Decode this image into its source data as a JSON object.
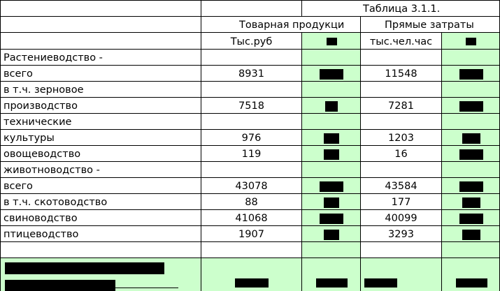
{
  "table": {
    "caption": "Таблица 3.1.1.",
    "header": {
      "group1": "Товарная продукци",
      "group2": "Прямые затраты",
      "unit1": "Тыс.руб",
      "unit2": "тыс.чел.час"
    },
    "rows": [
      {
        "label": "Растениеводство -",
        "value1": "",
        "value2": ""
      },
      {
        "label": "всего",
        "value1": "8931",
        "value2": "11548"
      },
      {
        "label": "в т.ч. зерновое",
        "value1": "",
        "value2": ""
      },
      {
        "label": "производство",
        "value1": "7518",
        "value2": "7281"
      },
      {
        "label": "технические",
        "value1": "",
        "value2": ""
      },
      {
        "label": "культуры",
        "value1": "976",
        "value2": "1203"
      },
      {
        "label": "овощеводство",
        "value1": "119",
        "value2": "16"
      },
      {
        "label": "животноводство -",
        "value1": "",
        "value2": ""
      },
      {
        "label": "всего",
        "value1": "43078",
        "value2": "43584"
      },
      {
        "label": "в т.ч. скотоводство",
        "value1": "88",
        "value2": "177"
      },
      {
        "label": "свиноводство",
        "value1": "41068",
        "value2": "40099"
      },
      {
        "label": "птицеводство",
        "value1": "1907",
        "value2": "3293"
      }
    ]
  },
  "colors": {
    "green_fill": "#ccffcc",
    "redaction": "#000000",
    "grid": "#000000"
  }
}
